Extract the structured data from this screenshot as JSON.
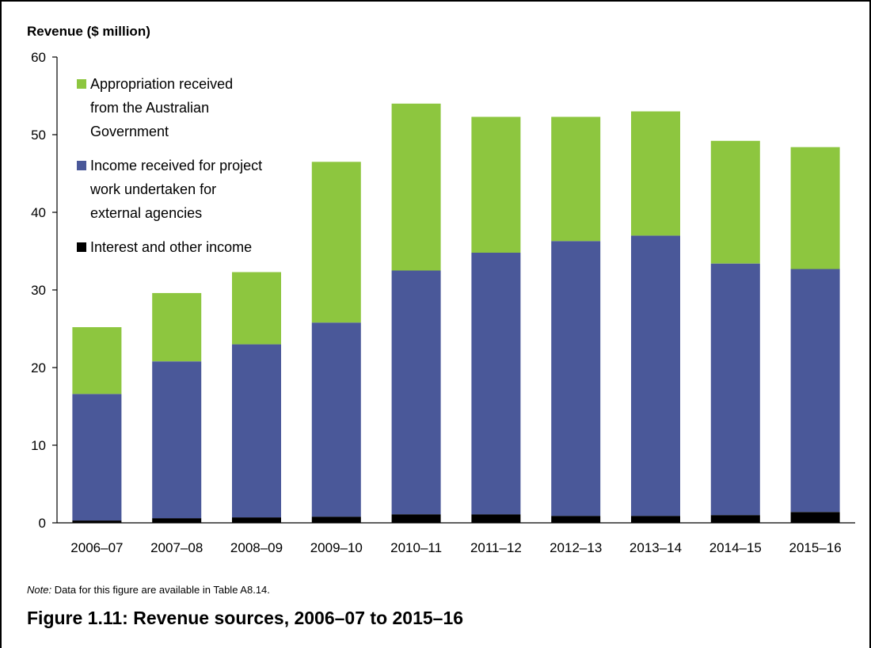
{
  "chart_data": {
    "type": "bar",
    "stacked": true,
    "ylabel": "Revenue ($ million)",
    "xlabel": "",
    "ylim": [
      0,
      60
    ],
    "yticks": [
      0,
      10,
      20,
      30,
      40,
      50,
      60
    ],
    "grid": false,
    "legend_position": "top-left",
    "categories": [
      "2006–07",
      "2007–08",
      "2008–09",
      "2009–10",
      "2010–11",
      "2011–12",
      "2012–13",
      "2013–14",
      "2014–15",
      "2015–16"
    ],
    "series": [
      {
        "name": "Interest and other income",
        "color": "#000000",
        "values": [
          0.3,
          0.6,
          0.7,
          0.8,
          1.1,
          1.1,
          0.9,
          0.9,
          1.0,
          1.4
        ]
      },
      {
        "name": "Income received for project work undertaken for external agencies",
        "color": "#4a5899",
        "values": [
          16.3,
          20.2,
          22.3,
          25.0,
          31.4,
          33.7,
          35.4,
          36.1,
          32.4,
          31.3
        ]
      },
      {
        "name": "Appropriation received from the Australian Government",
        "color": "#8dc63f",
        "values": [
          8.6,
          8.8,
          9.3,
          20.7,
          21.5,
          17.5,
          16.0,
          16.0,
          15.8,
          15.7
        ]
      }
    ],
    "legend": [
      {
        "lines": [
          "Appropriation received",
          "from the Australian",
          "Government"
        ],
        "color": "#8dc63f"
      },
      {
        "lines": [
          "Income received for project",
          "work undertaken for",
          "external agencies"
        ],
        "color": "#4a5899"
      },
      {
        "lines": [
          "Interest and other income"
        ],
        "color": "#000000"
      }
    ]
  },
  "note": {
    "label": "Note:",
    "text": " Data for this figure are available in Table A8.14."
  },
  "figure_title": "Figure 1.11: Revenue sources, 2006–07 to 2015–16"
}
